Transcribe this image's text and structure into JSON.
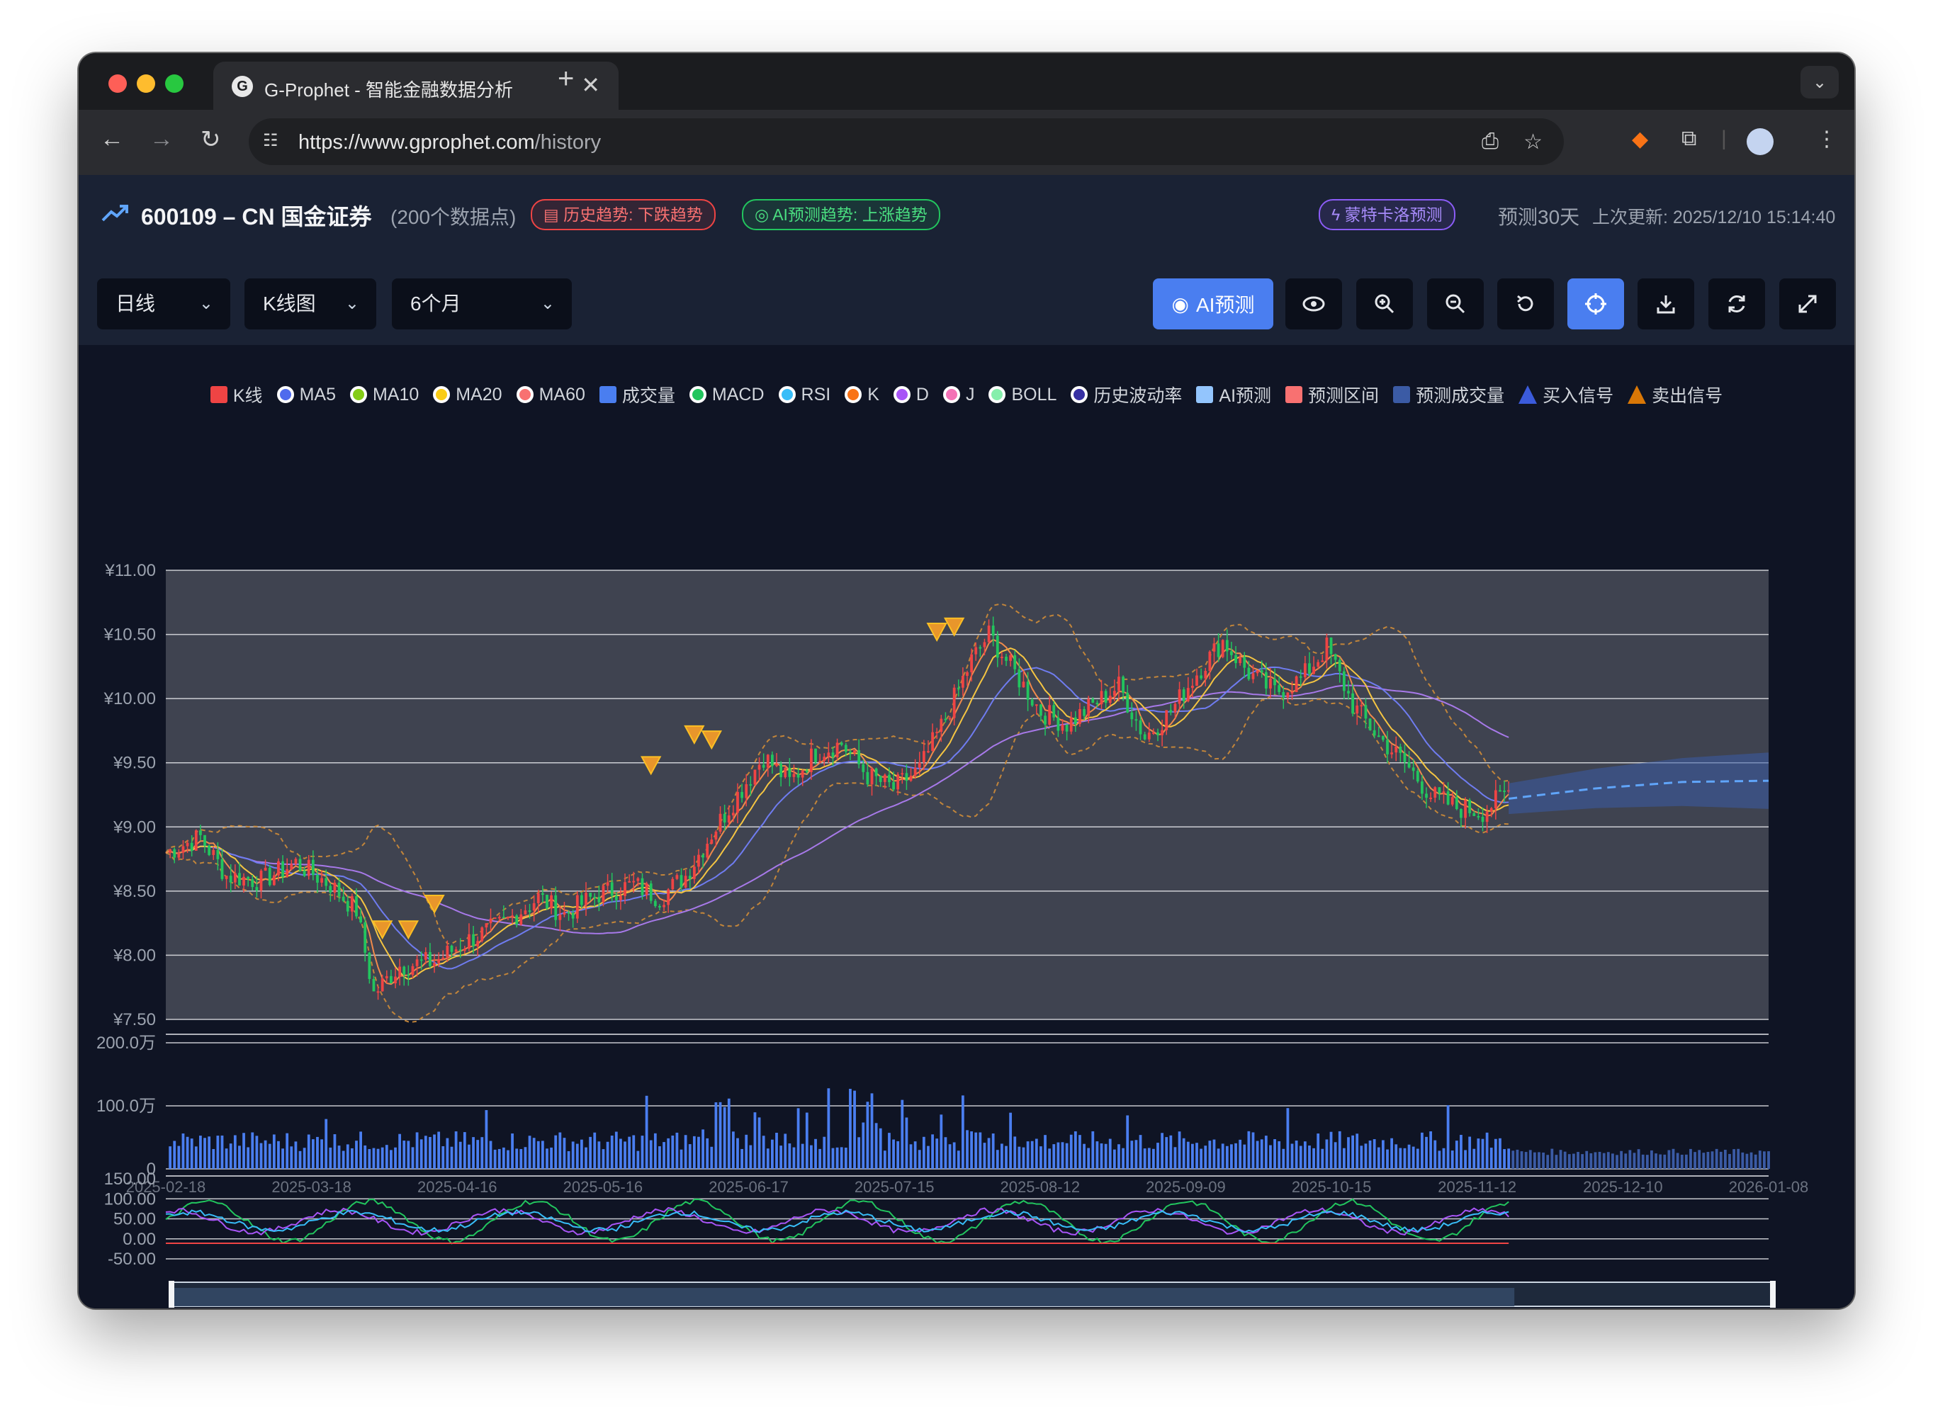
{
  "browser": {
    "tab_title": "G-Prophet - 智能金融数据分析",
    "url_host": "https://www.gprophet.com",
    "url_path": "/history",
    "new_tab": "+",
    "close": "✕"
  },
  "header": {
    "symbol": "600109 – CN 国金证券",
    "data_count": "(200个数据点)",
    "history_trend": "历史趋势: 下跌趋势",
    "ai_trend": "AI预测趋势: 上涨趋势",
    "montecarlo": "蒙特卡洛预测",
    "horizon": "预测30天",
    "updated": "上次更新: 2025/12/10 15:14:40"
  },
  "controls": {
    "period": "日线",
    "chart_type": "K线图",
    "range": "6个月",
    "ai_button": "AI预测"
  },
  "icons": {
    "eye": "eye-icon",
    "zoom_in": "zoom-in-icon",
    "zoom_out": "zoom-out-icon",
    "reset": "reset-icon",
    "crosshair": "crosshair-icon",
    "download": "download-icon",
    "refresh": "refresh-icon",
    "fullscreen": "fullscreen-icon"
  },
  "legend": [
    {
      "label": "K线",
      "shape": "box",
      "color": "#ef4444"
    },
    {
      "label": "MA5",
      "shape": "circle",
      "color": "#4f6bed"
    },
    {
      "label": "MA10",
      "shape": "circle",
      "color": "#84cc16"
    },
    {
      "label": "MA20",
      "shape": "circle",
      "color": "#facc15"
    },
    {
      "label": "MA60",
      "shape": "circle",
      "color": "#f87171"
    },
    {
      "label": "成交量",
      "shape": "box",
      "color": "#4a7ef0"
    },
    {
      "label": "MACD",
      "shape": "circle",
      "color": "#22c55e"
    },
    {
      "label": "RSI",
      "shape": "circle",
      "color": "#38bdf8"
    },
    {
      "label": "K",
      "shape": "circle",
      "color": "#f97316"
    },
    {
      "label": "D",
      "shape": "circle",
      "color": "#a855f7"
    },
    {
      "label": "J",
      "shape": "circle",
      "color": "#f472b6"
    },
    {
      "label": "BOLL",
      "shape": "circle",
      "color": "#86efac"
    },
    {
      "label": "历史波动率",
      "shape": "circle",
      "color": "#3730a3"
    },
    {
      "label": "AI预测",
      "shape": "box",
      "color": "#93c5fd"
    },
    {
      "label": "预测区间",
      "shape": "box",
      "color": "#f87171"
    },
    {
      "label": "预测成交量",
      "shape": "box",
      "color": "#3b5ba5"
    },
    {
      "label": "买入信号",
      "shape": "tri",
      "color": "#3b5bdb"
    },
    {
      "label": "卖出信号",
      "shape": "tri",
      "color": "#d97706"
    }
  ],
  "chart_data": {
    "type": "candlestick",
    "price_axis": {
      "ticks": [
        "¥11.00",
        "¥10.50",
        "¥10.00",
        "¥9.50",
        "¥9.00",
        "¥8.50",
        "¥8.00",
        "¥7.50"
      ],
      "ylim": [
        7.5,
        11.0
      ]
    },
    "volume_axis": {
      "ticks": [
        "200.0万",
        "100.0万",
        "0"
      ],
      "ylim": [
        0,
        200
      ]
    },
    "indicator_axis": {
      "ticks": [
        "150.00",
        "100.00",
        "50.00",
        "0.00",
        "-50.00"
      ],
      "ylim": [
        -50,
        150
      ]
    },
    "x_ticks": [
      "2025-02-18",
      "2025-03-18",
      "2025-04-16",
      "2025-05-16",
      "2025-06-17",
      "2025-07-15",
      "2025-08-12",
      "2025-09-09",
      "2025-10-15",
      "2025-11-12",
      "2025-12-10",
      "2026-01-08"
    ],
    "price_path": [
      [
        0,
        8.8
      ],
      [
        8,
        8.92
      ],
      [
        14,
        8.62
      ],
      [
        22,
        8.58
      ],
      [
        30,
        8.72
      ],
      [
        38,
        8.55
      ],
      [
        44,
        8.35
      ],
      [
        48,
        7.7
      ],
      [
        54,
        7.92
      ],
      [
        62,
        7.95
      ],
      [
        70,
        8.12
      ],
      [
        78,
        8.25
      ],
      [
        86,
        8.45
      ],
      [
        92,
        8.32
      ],
      [
        100,
        8.48
      ],
      [
        108,
        8.55
      ],
      [
        114,
        8.45
      ],
      [
        120,
        8.62
      ],
      [
        126,
        8.95
      ],
      [
        132,
        9.25
      ],
      [
        138,
        9.55
      ],
      [
        144,
        9.35
      ],
      [
        150,
        9.58
      ],
      [
        156,
        9.65
      ],
      [
        162,
        9.4
      ],
      [
        168,
        9.3
      ],
      [
        174,
        9.45
      ],
      [
        180,
        9.85
      ],
      [
        186,
        10.3
      ],
      [
        190,
        10.5
      ],
      [
        196,
        10.2
      ],
      [
        202,
        9.9
      ],
      [
        208,
        9.8
      ],
      [
        214,
        9.95
      ],
      [
        220,
        10.1
      ],
      [
        226,
        9.7
      ],
      [
        232,
        9.9
      ],
      [
        238,
        10.2
      ],
      [
        244,
        10.45
      ],
      [
        250,
        10.2
      ],
      [
        256,
        10.05
      ],
      [
        262,
        10.15
      ],
      [
        268,
        10.4
      ],
      [
        274,
        9.95
      ],
      [
        280,
        9.7
      ],
      [
        286,
        9.5
      ],
      [
        292,
        9.25
      ],
      [
        298,
        9.15
      ],
      [
        304,
        9.12
      ],
      [
        310,
        9.28
      ]
    ],
    "forecast": [
      [
        310,
        9.22
      ],
      [
        330,
        9.3
      ],
      [
        350,
        9.35
      ],
      [
        370,
        9.36
      ]
    ],
    "sell_signals": [
      [
        50,
        8.2
      ],
      [
        56,
        8.2
      ],
      [
        62,
        8.4
      ],
      [
        112,
        9.48
      ],
      [
        122,
        9.72
      ],
      [
        126,
        9.68
      ],
      [
        178,
        10.52
      ],
      [
        182,
        10.56
      ]
    ],
    "last_index": 310,
    "forecast_end_index": 370
  }
}
